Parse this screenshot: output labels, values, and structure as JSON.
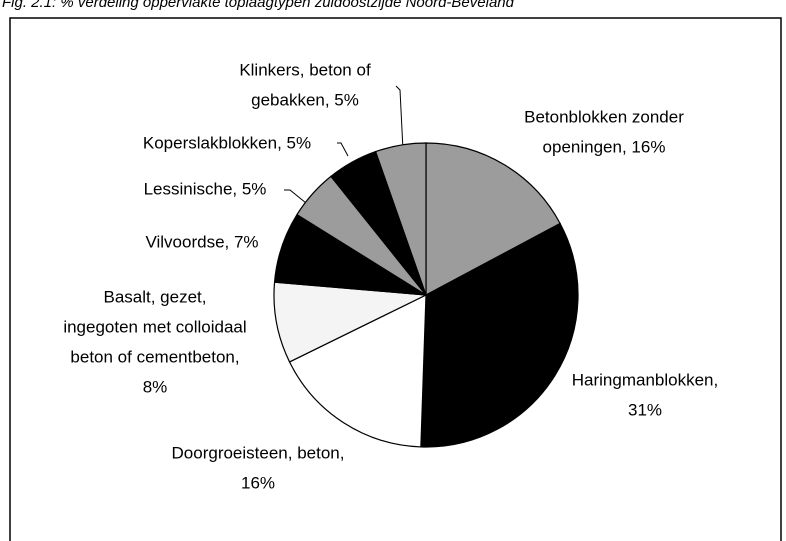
{
  "chart_data": {
    "type": "pie",
    "title": "Fig. 2.1: % verdeling oppervlakte toplaagtypen zuidoostzijde Noord-Beveland",
    "categories": [
      "Betonblokken zonder openingen",
      "Haringmanblokken",
      "Doorgroeisteen, beton",
      "Basalt, gezet, ingegoten met colloidaal beton of cementbeton",
      "Vilvoordse",
      "Lessinische",
      "Koperslakblokken",
      "Klinkers, beton of gebakken"
    ],
    "values": [
      16,
      31,
      16,
      8,
      7,
      5,
      5,
      5
    ],
    "labels": [
      [
        "Betonblokken zonder",
        "openingen, 16%"
      ],
      [
        "Haringmanblokken,",
        "31%"
      ],
      [
        "Doorgroeisteen, beton,",
        "16%"
      ],
      [
        "Basalt, gezet,",
        "ingegoten met colloidaal",
        "beton of cementbeton,",
        "8%"
      ],
      [
        "Vilvoordse, 7%"
      ],
      [
        "Lessinische, 5%"
      ],
      [
        "Koperslakblokken, 5%"
      ],
      [
        "Klinkers, beton of",
        "gebakken, 5%"
      ]
    ],
    "colors": [
      "#9c9c9c",
      "#000000",
      "#ffffff",
      "#f4f4f4",
      "#000000",
      "#9c9c9c",
      "#000000",
      "#9c9c9c"
    ]
  }
}
